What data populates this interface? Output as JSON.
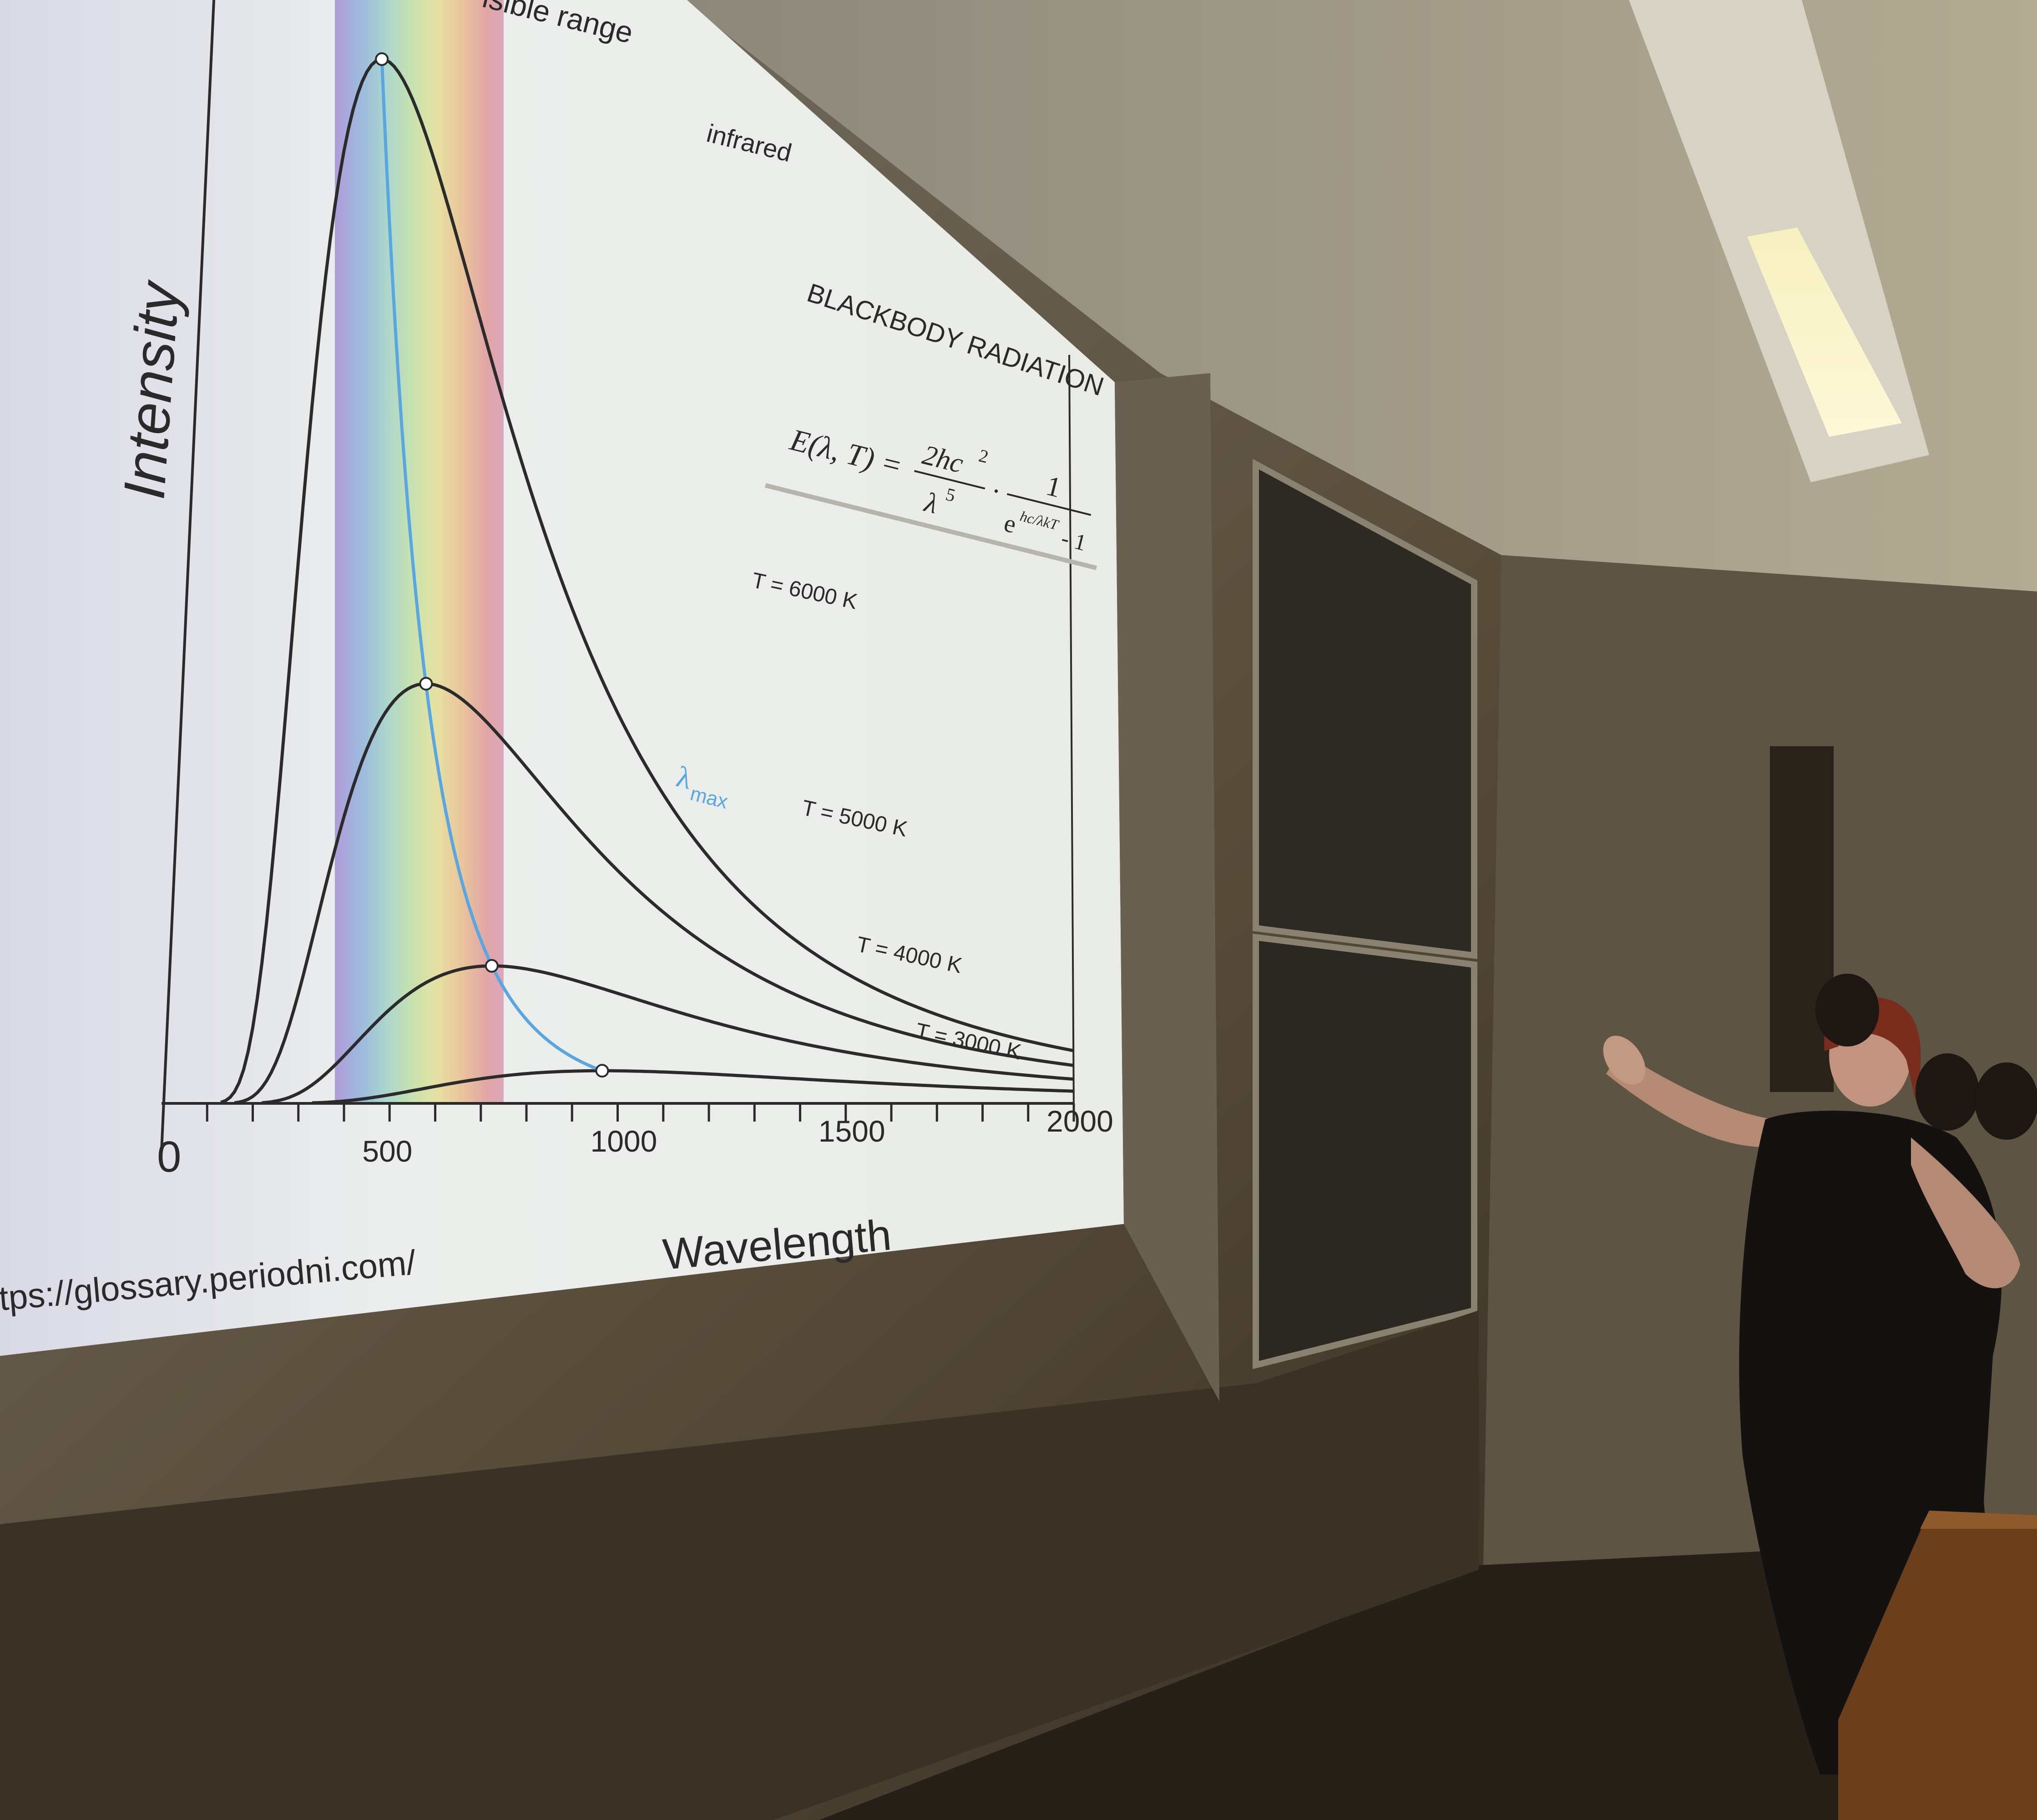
{
  "slide": {
    "visible_label": "isible range",
    "infrared_label": "infrared",
    "title": "BLACKBODY RADIATION",
    "formula": {
      "lhs": "E(λ, T) =",
      "numerator": "2hc",
      "numerator_exp": "2",
      "denominator": "λ",
      "denominator_exp": "5",
      "dot": "·",
      "one": "1",
      "exp_base": "e",
      "exp_power": "hc/λkT",
      "minus_one": "- 1"
    },
    "y_axis_label": "Intensity",
    "x_axis_label": "Wavelength",
    "source_url": "tps://glossary.periodni.com/",
    "lambda_max": {
      "symbol": "λ",
      "subscript": "max",
      "color": "#5aa6e0"
    }
  },
  "chart_data": {
    "type": "line",
    "xlabel": "Wavelength",
    "ylabel": "Intensity",
    "x_ticks": [
      {
        "value": 0,
        "label": "0"
      },
      {
        "value": 500,
        "label": "500"
      },
      {
        "value": 1000,
        "label": "1000"
      },
      {
        "value": 1500,
        "label": "1500"
      },
      {
        "value": 2000,
        "label": "2000"
      }
    ],
    "xlim": [
      0,
      2000
    ],
    "series": [
      {
        "name": "T = 6000 K",
        "temperature": 6000,
        "peak_wavelength": 483
      },
      {
        "name": "T = 5000 K",
        "temperature": 5000,
        "peak_wavelength": 580
      },
      {
        "name": "T = 4000 K",
        "temperature": 4000,
        "peak_wavelength": 724
      },
      {
        "name": "T = 3000 K",
        "temperature": 3000,
        "peak_wavelength": 966
      }
    ],
    "visible_band": [
      380,
      750
    ],
    "grid": false
  },
  "colors": {
    "curve": "#2b2b2b",
    "lambda_max": "#5aa6e0",
    "screen": "#eef0ee",
    "wall": "#4a4032"
  }
}
